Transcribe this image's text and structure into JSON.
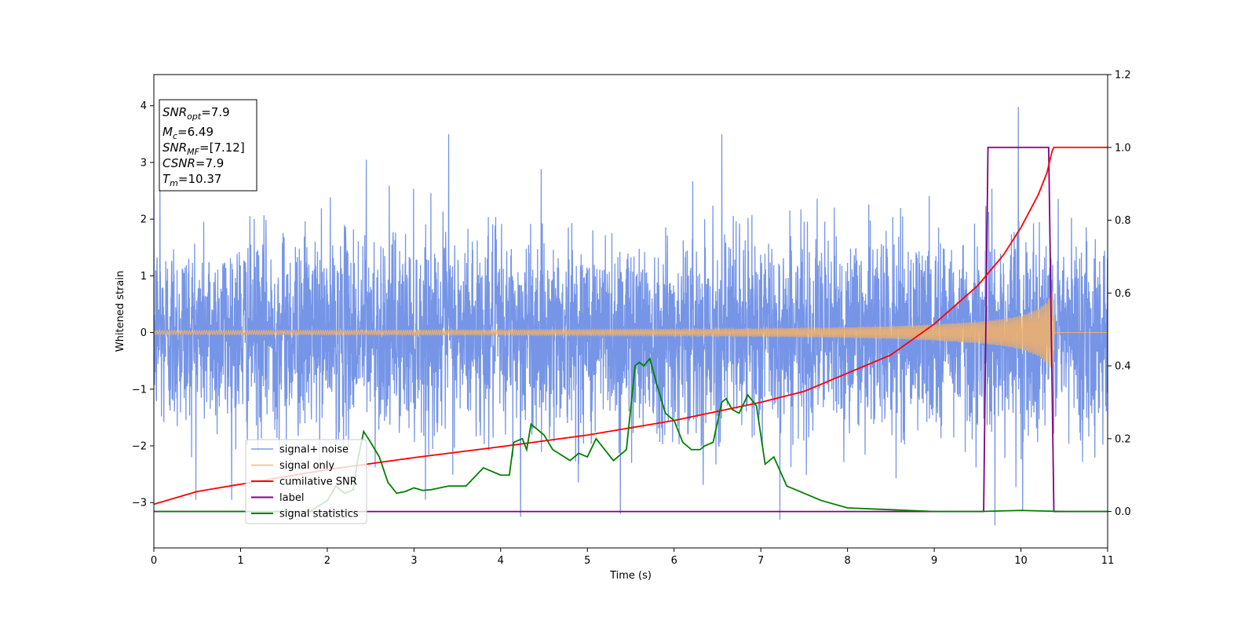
{
  "chart_data": {
    "type": "line",
    "xlabel": "Time (s)",
    "ylabel": "Whitened strain",
    "xlim": [
      0,
      11
    ],
    "ylim": [
      -3.8,
      4.55
    ],
    "y2lim": [
      -0.1,
      1.2
    ],
    "xticks": [
      "0",
      "1",
      "2",
      "3",
      "4",
      "5",
      "6",
      "7",
      "8",
      "9",
      "10",
      "11"
    ],
    "yticks": [
      "−3",
      "−2",
      "−1",
      "0",
      "1",
      "2",
      "3",
      "4"
    ],
    "y2ticks": [
      "0.0",
      "0.2",
      "0.4",
      "0.6",
      "0.8",
      "1.0",
      "1.2"
    ],
    "legend_position": "lower-left",
    "info_box": {
      "position": "top-left",
      "lines": [
        {
          "var": "SNR",
          "sub": "opt",
          "value": "=7.9"
        },
        {
          "var": "M",
          "sub": "c",
          "value": "=6.49"
        },
        {
          "var": "SNR",
          "sub": "MF",
          "value": "=[7.12]"
        },
        {
          "var": "CSNR",
          "sub": "",
          "value": "=7.9"
        },
        {
          "var": "T",
          "sub": "m",
          "value": "=10.37"
        }
      ]
    },
    "series": [
      {
        "name": "signal+ noise",
        "axis": "left",
        "color": "#6f8fe6",
        "noise_std": 0.85,
        "extremes": [
          [
            0.07,
            2.6
          ],
          [
            2.45,
            3.05
          ],
          [
            3.4,
            3.5
          ],
          [
            6.55,
            3.5
          ],
          [
            9.97,
            3.98
          ],
          [
            4.23,
            -3.25
          ],
          [
            5.38,
            -3.2
          ],
          [
            7.22,
            -3.3
          ],
          [
            9.7,
            -3.4
          ],
          [
            10.02,
            -3.15
          ]
        ]
      },
      {
        "name": "signal only",
        "axis": "left",
        "color": "#f5b266",
        "envelope": {
          "t": [
            0,
            2,
            4,
            6,
            7,
            8,
            8.5,
            9,
            9.5,
            9.8,
            10,
            10.2,
            10.3,
            10.37,
            10.39,
            11
          ],
          "amp": [
            0.035,
            0.04,
            0.045,
            0.055,
            0.07,
            0.09,
            0.11,
            0.14,
            0.19,
            0.24,
            0.3,
            0.42,
            0.55,
            0.75,
            0.0,
            0.0
          ]
        }
      },
      {
        "name": "cumilative SNR",
        "axis": "right",
        "color": "#ff0000",
        "x": [
          0,
          0.5,
          1,
          2,
          3,
          4,
          5,
          6,
          7,
          7.5,
          8,
          8.5,
          9,
          9.5,
          9.8,
          10,
          10.2,
          10.3,
          10.37,
          10.4,
          11
        ],
        "y": [
          0.02,
          0.055,
          0.075,
          0.115,
          0.148,
          0.178,
          0.21,
          0.25,
          0.3,
          0.33,
          0.38,
          0.43,
          0.515,
          0.62,
          0.705,
          0.78,
          0.87,
          0.93,
          1.0,
          1.0,
          1.0
        ]
      },
      {
        "name": "label",
        "axis": "right",
        "color": "#800080",
        "x": [
          0,
          9.57,
          9.62,
          10.32,
          10.38,
          11
        ],
        "y": [
          0.0,
          0.0,
          1.0,
          1.0,
          0.0,
          0.0
        ]
      },
      {
        "name": "signal statistics",
        "axis": "right",
        "color": "#008000",
        "x": [
          0,
          1.8,
          2.0,
          2.1,
          2.2,
          2.3,
          2.35,
          2.42,
          2.5,
          2.6,
          2.7,
          2.8,
          2.9,
          3.0,
          3.1,
          3.2,
          3.4,
          3.6,
          3.8,
          4.0,
          4.1,
          4.15,
          4.25,
          4.3,
          4.35,
          4.5,
          4.6,
          4.8,
          4.9,
          5.0,
          5.1,
          5.2,
          5.3,
          5.45,
          5.55,
          5.6,
          5.65,
          5.72,
          5.8,
          5.9,
          6.0,
          6.1,
          6.2,
          6.3,
          6.35,
          6.45,
          6.55,
          6.6,
          6.67,
          6.75,
          6.85,
          6.95,
          7.05,
          7.15,
          7.3,
          7.5,
          7.7,
          8.0,
          8.5,
          9.0,
          9.5,
          10.0,
          10.5,
          11.0
        ],
        "y": [
          0.0,
          0.0,
          0.03,
          0.07,
          0.05,
          0.06,
          0.14,
          0.22,
          0.19,
          0.15,
          0.08,
          0.05,
          0.055,
          0.065,
          0.058,
          0.06,
          0.07,
          0.07,
          0.12,
          0.1,
          0.1,
          0.19,
          0.2,
          0.17,
          0.24,
          0.21,
          0.17,
          0.14,
          0.16,
          0.15,
          0.2,
          0.17,
          0.14,
          0.17,
          0.4,
          0.41,
          0.4,
          0.42,
          0.35,
          0.27,
          0.25,
          0.19,
          0.17,
          0.17,
          0.18,
          0.19,
          0.3,
          0.31,
          0.28,
          0.27,
          0.32,
          0.29,
          0.13,
          0.15,
          0.07,
          0.05,
          0.03,
          0.01,
          0.005,
          0.0,
          0.0,
          0.003,
          0.0,
          0.0
        ]
      }
    ]
  }
}
